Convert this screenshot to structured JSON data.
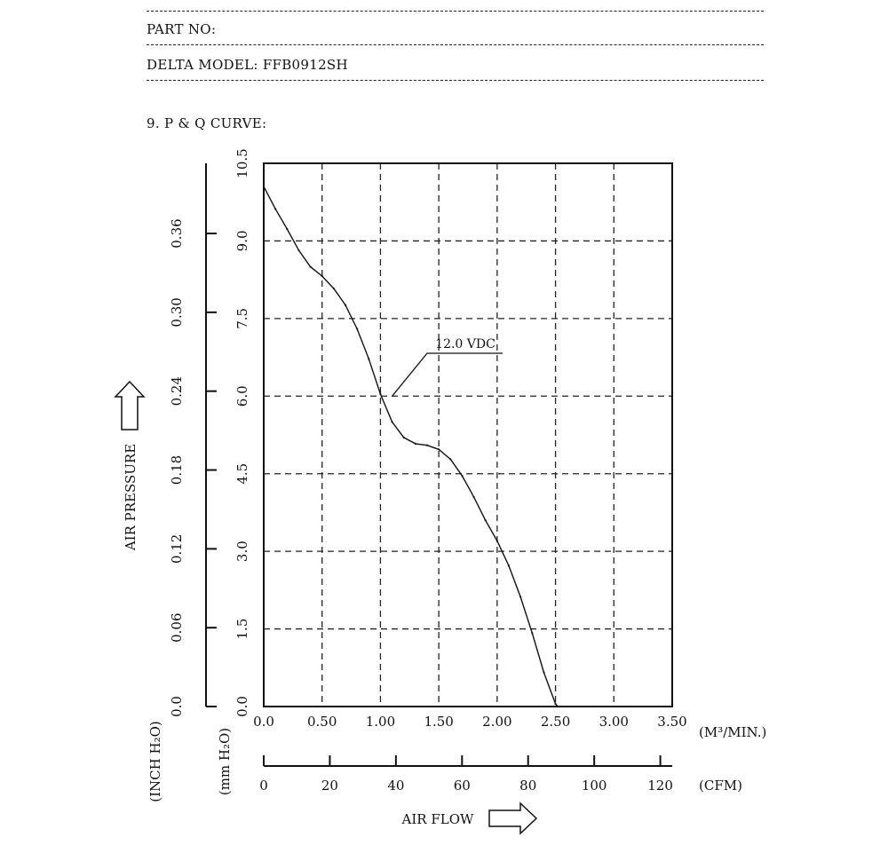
{
  "header": {
    "part_no_label": "PART NO:",
    "model_label": "DELTA MODEL: FFB0912SH",
    "section_title": "9. P & Q CURVE:"
  },
  "chart_data": {
    "type": "line",
    "x_unit_primary": "(M³/MIN.)",
    "x_unit_secondary": "(CFM)",
    "y_unit_primary": "(mm H₂O)",
    "y_unit_secondary": "(INCH H₂O)",
    "xlim": [
      0,
      3.5
    ],
    "ylim": [
      0,
      10.5
    ],
    "x_ticks": [
      "0.0",
      "0.50",
      "1.00",
      "1.50",
      "2.00",
      "2.50",
      "3.00",
      "3.50"
    ],
    "x_tick_values": [
      0,
      0.5,
      1.0,
      1.5,
      2.0,
      2.5,
      3.0,
      3.5
    ],
    "y_ticks": [
      "0.0",
      "1.5",
      "3.0",
      "4.5",
      "6.0",
      "7.5",
      "9.0",
      "10.5"
    ],
    "y_tick_values": [
      0,
      1.5,
      3.0,
      4.5,
      6.0,
      7.5,
      9.0,
      10.5
    ],
    "inch_ticks": [
      "0.0",
      "0.06",
      "0.12",
      "0.18",
      "0.24",
      "0.30",
      "0.36"
    ],
    "inch_tick_values": [
      0,
      0.06,
      0.12,
      0.18,
      0.24,
      0.3,
      0.36
    ],
    "cfm_ticks": [
      "0",
      "20",
      "40",
      "60",
      "80",
      "100",
      "120"
    ],
    "cfm_tick_values": [
      0,
      20,
      40,
      60,
      80,
      100,
      120
    ],
    "xlabel": "AIR FLOW",
    "ylabel": "AIR PRESSURE",
    "grid": true,
    "series": [
      {
        "name": "12.0 VDC",
        "x": [
          0,
          0.1,
          0.2,
          0.3,
          0.4,
          0.5,
          0.6,
          0.7,
          0.8,
          0.9,
          1.0,
          1.1,
          1.2,
          1.3,
          1.4,
          1.5,
          1.6,
          1.7,
          1.8,
          1.9,
          2.0,
          2.1,
          2.2,
          2.3,
          2.4,
          2.5,
          2.52
        ],
        "y": [
          10.05,
          9.62,
          9.23,
          8.82,
          8.5,
          8.32,
          8.08,
          7.76,
          7.3,
          6.72,
          6.04,
          5.5,
          5.2,
          5.08,
          5.05,
          4.97,
          4.78,
          4.46,
          4.05,
          3.6,
          3.2,
          2.72,
          2.12,
          1.42,
          0.66,
          0.05,
          0.0
        ]
      }
    ],
    "annotations": [
      {
        "text": "12.0 VDC",
        "x": 1.1,
        "y": 6.0
      }
    ]
  }
}
